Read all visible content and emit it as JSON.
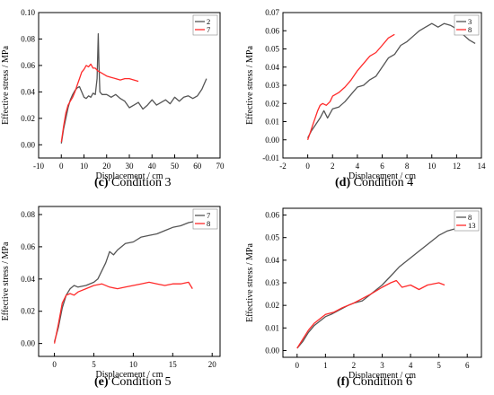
{
  "captions": [
    {
      "letter": "(c)",
      "text": "Condition 3"
    },
    {
      "letter": "(d)",
      "text": "Condition 4"
    },
    {
      "letter": "(e)",
      "text": "Condition 5"
    },
    {
      "letter": "(f)",
      "text": "Condition 6"
    }
  ],
  "colors": {
    "gray": "#555555",
    "red": "#ff2a2a"
  },
  "chart_data": [
    {
      "type": "line",
      "xlabel": "Displacement / cm",
      "ylabel": "Effective stress / MPa",
      "xlim": [
        -10,
        70
      ],
      "ylim": [
        -0.01,
        0.1
      ],
      "xticks": [
        -10,
        0,
        10,
        20,
        30,
        40,
        50,
        60,
        70
      ],
      "xtick_labels": [
        "-10",
        "0",
        "10",
        "20",
        "30",
        "40",
        "50",
        "60",
        "70"
      ],
      "yticks": [
        0.0,
        0.02,
        0.04,
        0.06,
        0.08,
        0.1
      ],
      "ytick_labels": [
        "0.00",
        "0.02",
        "0.04",
        "0.06",
        "0.08",
        "0.10"
      ],
      "legend": "top-right",
      "series": [
        {
          "name": "2",
          "color": "#555555",
          "x": [
            0,
            1,
            2,
            3,
            4,
            5,
            6,
            7,
            8,
            9,
            10,
            11,
            12,
            13,
            14,
            15,
            15.8,
            16.3,
            16.6,
            17,
            17.5,
            18,
            20,
            22,
            24,
            26,
            28,
            30,
            32,
            34,
            36,
            38,
            40,
            42,
            44,
            46,
            48,
            50,
            52,
            54,
            56,
            58,
            60,
            62,
            64
          ],
          "y": [
            0.001,
            0.012,
            0.02,
            0.028,
            0.034,
            0.038,
            0.041,
            0.043,
            0.044,
            0.04,
            0.036,
            0.035,
            0.037,
            0.036,
            0.039,
            0.038,
            0.05,
            0.084,
            0.06,
            0.04,
            0.039,
            0.038,
            0.038,
            0.036,
            0.038,
            0.035,
            0.033,
            0.028,
            0.03,
            0.032,
            0.027,
            0.03,
            0.034,
            0.03,
            0.032,
            0.034,
            0.031,
            0.036,
            0.033,
            0.036,
            0.037,
            0.035,
            0.037,
            0.042,
            0.05
          ]
        },
        {
          "name": "7",
          "color": "#ff2a2a",
          "x": [
            0,
            1,
            2,
            3,
            4,
            5,
            6,
            7,
            8,
            9,
            10,
            11,
            12,
            13,
            14,
            15,
            16,
            18,
            20,
            22,
            24,
            26,
            28,
            30,
            32,
            34
          ],
          "y": [
            0.002,
            0.014,
            0.024,
            0.03,
            0.033,
            0.036,
            0.04,
            0.045,
            0.05,
            0.055,
            0.057,
            0.06,
            0.059,
            0.061,
            0.058,
            0.058,
            0.056,
            0.054,
            0.052,
            0.051,
            0.05,
            0.049,
            0.05,
            0.05,
            0.049,
            0.048
          ]
        }
      ]
    },
    {
      "type": "line",
      "xlabel": "Displacement / cm",
      "ylabel": "Effective stress / MPa",
      "xlim": [
        -2,
        14
      ],
      "ylim": [
        -0.01,
        0.07
      ],
      "xticks": [
        -2,
        0,
        2,
        4,
        6,
        8,
        10,
        12,
        14
      ],
      "xtick_labels": [
        "-2",
        "0",
        "2",
        "4",
        "6",
        "8",
        "10",
        "12",
        "14"
      ],
      "yticks": [
        -0.01,
        0.0,
        0.01,
        0.02,
        0.03,
        0.04,
        0.05,
        0.06,
        0.07
      ],
      "ytick_labels": [
        "-0.01",
        "0.00",
        "0.01",
        "0.02",
        "0.03",
        "0.04",
        "0.05",
        "0.06",
        "0.07"
      ],
      "legend": "top-right",
      "series": [
        {
          "name": "3",
          "color": "#555555",
          "x": [
            0,
            0.3,
            0.6,
            1,
            1.3,
            1.6,
            2,
            2.5,
            3,
            3.5,
            4,
            4.5,
            5,
            5.5,
            6,
            6.5,
            7,
            7.5,
            8,
            8.5,
            9,
            9.5,
            10,
            10.5,
            11,
            11.5,
            12,
            12.5,
            13,
            13.5
          ],
          "y": [
            0.001,
            0.005,
            0.008,
            0.012,
            0.016,
            0.012,
            0.017,
            0.018,
            0.021,
            0.025,
            0.029,
            0.03,
            0.033,
            0.035,
            0.04,
            0.045,
            0.047,
            0.052,
            0.054,
            0.057,
            0.06,
            0.062,
            0.064,
            0.062,
            0.064,
            0.063,
            0.061,
            0.058,
            0.055,
            0.053
          ]
        },
        {
          "name": "8",
          "color": "#ff2a2a",
          "x": [
            0,
            0.2,
            0.4,
            0.6,
            0.8,
            1,
            1.2,
            1.5,
            1.8,
            2,
            2.5,
            3,
            3.5,
            4,
            4.5,
            5,
            5.5,
            6,
            6.5,
            7
          ],
          "y": [
            0.0,
            0.004,
            0.008,
            0.012,
            0.016,
            0.019,
            0.02,
            0.019,
            0.021,
            0.024,
            0.026,
            0.029,
            0.033,
            0.038,
            0.042,
            0.046,
            0.048,
            0.052,
            0.056,
            0.058
          ]
        }
      ]
    },
    {
      "type": "line",
      "xlabel": "Displacement / cm",
      "ylabel": "Effective stress / MPa",
      "xlim": [
        -2,
        21
      ],
      "ylim": [
        -0.008,
        0.085
      ],
      "xticks": [
        0,
        5,
        10,
        15,
        20
      ],
      "xtick_labels": [
        "0",
        "5",
        "10",
        "15",
        "20"
      ],
      "yticks": [
        0.0,
        0.02,
        0.04,
        0.06,
        0.08
      ],
      "ytick_labels": [
        "0.00",
        "0.02",
        "0.04",
        "0.06",
        "0.08"
      ],
      "legend": "top-right",
      "series": [
        {
          "name": "7",
          "color": "#555555",
          "x": [
            0,
            0.5,
            1,
            1.5,
            2,
            2.5,
            3,
            4,
            5,
            5.5,
            6,
            6.5,
            7,
            7.5,
            8,
            9,
            10,
            11,
            12,
            13,
            14,
            15,
            16,
            17,
            18,
            19
          ],
          "y": [
            0.001,
            0.01,
            0.022,
            0.03,
            0.034,
            0.036,
            0.035,
            0.036,
            0.038,
            0.04,
            0.045,
            0.05,
            0.057,
            0.055,
            0.058,
            0.062,
            0.063,
            0.066,
            0.067,
            0.068,
            0.07,
            0.072,
            0.073,
            0.075,
            0.076,
            0.077
          ]
        },
        {
          "name": "8",
          "color": "#ff2a2a",
          "x": [
            0,
            0.5,
            1,
            1.5,
            2,
            2.5,
            3,
            4,
            5,
            6,
            7,
            8,
            9,
            10,
            11,
            12,
            13,
            14,
            15,
            16,
            17,
            17.5
          ],
          "y": [
            0.0,
            0.012,
            0.025,
            0.03,
            0.031,
            0.03,
            0.032,
            0.034,
            0.036,
            0.037,
            0.035,
            0.034,
            0.035,
            0.036,
            0.037,
            0.038,
            0.037,
            0.036,
            0.037,
            0.037,
            0.038,
            0.034
          ]
        }
      ]
    },
    {
      "type": "line",
      "xlabel": "Displacement / cm",
      "ylabel": "Effective stress / MPa",
      "xlim": [
        -0.5,
        6.5
      ],
      "ylim": [
        -0.003,
        0.063
      ],
      "xticks": [
        0,
        1,
        2,
        3,
        4,
        5,
        6
      ],
      "xtick_labels": [
        "0",
        "1",
        "2",
        "3",
        "4",
        "5",
        "6"
      ],
      "yticks": [
        0.0,
        0.01,
        0.02,
        0.03,
        0.04,
        0.05,
        0.06
      ],
      "ytick_labels": [
        "0.00",
        "0.01",
        "0.02",
        "0.03",
        "0.04",
        "0.05",
        "0.06"
      ],
      "legend": "top-right",
      "series": [
        {
          "name": "8",
          "color": "#555555",
          "x": [
            0,
            0.2,
            0.4,
            0.6,
            0.8,
            1,
            1.2,
            1.5,
            1.8,
            2,
            2.3,
            2.6,
            3,
            3.3,
            3.6,
            4,
            4.3,
            4.6,
            5,
            5.3,
            5.6,
            5.9
          ],
          "y": [
            0.001,
            0.004,
            0.008,
            0.011,
            0.013,
            0.015,
            0.016,
            0.018,
            0.02,
            0.021,
            0.022,
            0.025,
            0.029,
            0.033,
            0.037,
            0.041,
            0.044,
            0.047,
            0.051,
            0.053,
            0.054,
            0.055
          ]
        },
        {
          "name": "13",
          "color": "#ff2a2a",
          "x": [
            0,
            0.2,
            0.4,
            0.6,
            0.8,
            1,
            1.3,
            1.6,
            2,
            2.3,
            2.6,
            3,
            3.3,
            3.5,
            3.7,
            4,
            4.3,
            4.6,
            5,
            5.2
          ],
          "y": [
            0.001,
            0.005,
            0.009,
            0.012,
            0.014,
            0.016,
            0.017,
            0.019,
            0.021,
            0.023,
            0.025,
            0.028,
            0.03,
            0.031,
            0.028,
            0.029,
            0.027,
            0.029,
            0.03,
            0.029
          ]
        }
      ]
    }
  ]
}
